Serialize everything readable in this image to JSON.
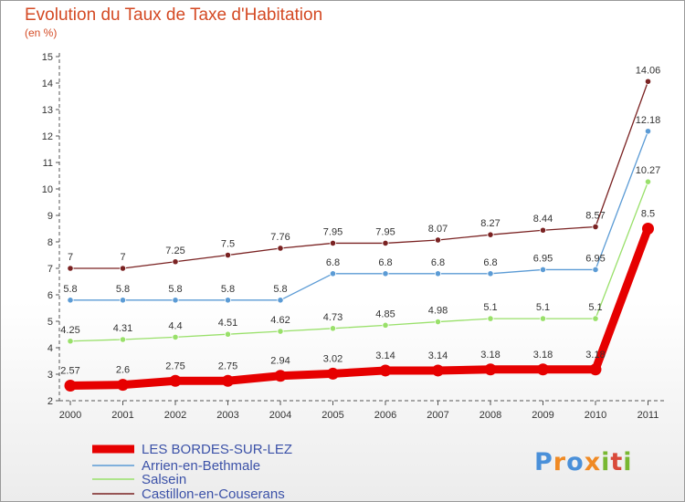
{
  "title": "Evolution du Taux de Taxe d'Habitation",
  "subtitle": "(en %)",
  "logo": {
    "text": "Proxiti",
    "colors": [
      "#4a90d9",
      "#f08a24",
      "#4a90d9",
      "#f08a24",
      "#78b832",
      "#d94a3a",
      "#78b832"
    ]
  },
  "colors": {
    "title": "#d44a24",
    "legend_text": "#3c52a8",
    "axis": "#555555"
  },
  "chart_data": {
    "type": "line",
    "categories": [
      "2000",
      "2001",
      "2002",
      "2003",
      "2004",
      "2005",
      "2006",
      "2007",
      "2008",
      "2009",
      "2010",
      "2011"
    ],
    "ylim": [
      2,
      15
    ],
    "yticks": [
      "2",
      "3",
      "4",
      "5",
      "6",
      "7",
      "8",
      "9",
      "10",
      "11",
      "12",
      "13",
      "14",
      "15"
    ],
    "grid": false,
    "legend_position": "bottom-left",
    "series": [
      {
        "name": "LES BORDES-SUR-LEZ",
        "color": "#e60000",
        "values": [
          2.57,
          2.6,
          2.75,
          2.75,
          2.94,
          3.02,
          3.14,
          3.14,
          3.18,
          3.18,
          3.18,
          8.5
        ],
        "labels": [
          "2.57",
          "2.6",
          "2.75",
          "2.75",
          "2.94",
          "3.02",
          "3.14",
          "3.14",
          "3.18",
          "3.18",
          "3.18",
          "8.5"
        ]
      },
      {
        "name": "Arrien-en-Bethmale",
        "color": "#5b9bd5",
        "values": [
          5.8,
          5.8,
          5.8,
          5.8,
          5.8,
          6.8,
          6.8,
          6.8,
          6.8,
          6.95,
          6.95,
          12.18
        ],
        "labels": [
          "5.8",
          "5.8",
          "5.8",
          "5.8",
          "5.8",
          "6.8",
          "6.8",
          "6.8",
          "6.8",
          "6.95",
          "6.95",
          "12.18"
        ]
      },
      {
        "name": "Salsein",
        "color": "#99e06a",
        "values": [
          4.25,
          4.31,
          4.4,
          4.51,
          4.62,
          4.73,
          4.85,
          4.98,
          5.1,
          5.1,
          5.1,
          10.27
        ],
        "labels": [
          "4.25",
          "4.31",
          "4.4",
          "4.51",
          "4.62",
          "4.73",
          "4.85",
          "4.98",
          "5.1",
          "5.1",
          "5.1",
          "10.27"
        ]
      },
      {
        "name": "Castillon-en-Couserans",
        "color": "#7a2222",
        "values": [
          7,
          7,
          7.25,
          7.5,
          7.76,
          7.95,
          7.95,
          8.07,
          8.27,
          8.44,
          8.57,
          14.06
        ],
        "labels": [
          "7",
          "7",
          "7.25",
          "7.5",
          "7.76",
          "7.95",
          "7.95",
          "8.07",
          "8.27",
          "8.44",
          "8.57",
          "14.06"
        ]
      }
    ]
  }
}
